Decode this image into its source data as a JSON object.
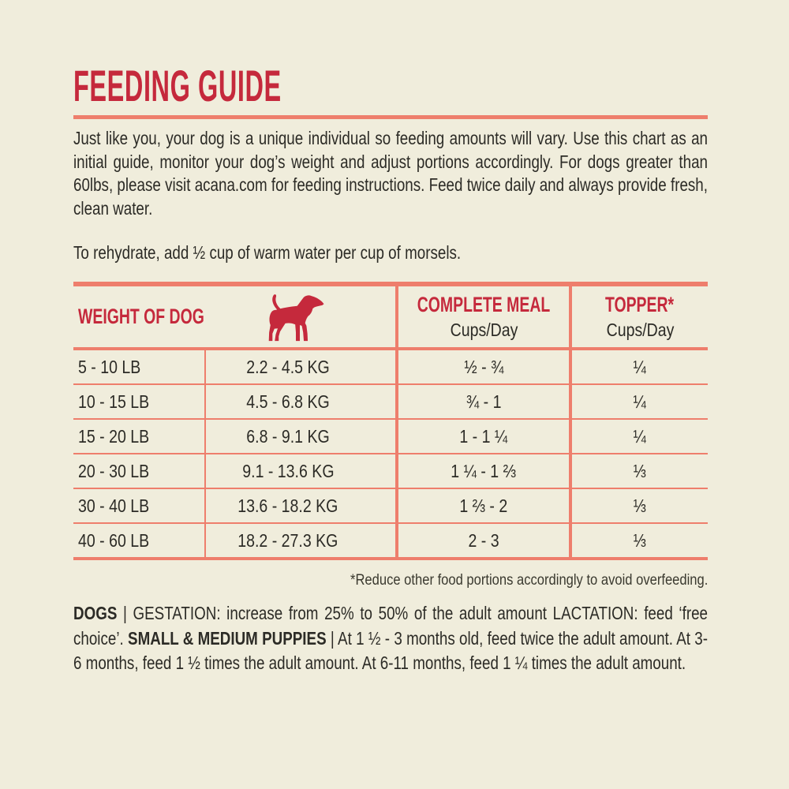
{
  "page": {
    "title": "FEEDING GUIDE",
    "intro": "Just like you, your dog is a unique individual so feeding amounts will vary. Use this chart as an initial guide, monitor your dog’s weight and adjust portions accordingly. For dogs greater than 60lbs, please visit acana.com for feeding instructions. Feed twice daily and always provide fresh, clean water.",
    "rehydrate_note": "To rehydrate, add ½ cup of warm water per cup of morsels.",
    "footnote": "*Reduce other food portions accordingly to avoid overfeeding.",
    "care_note_segments": [
      {
        "text": "DOGS",
        "bold": true
      },
      {
        "text": " | GESTATION: increase from 25% to 50% of the adult amount LACTATION: feed ‘free choice’. ",
        "bold": false
      },
      {
        "text": "SMALL & MEDIUM PUPPIES",
        "bold": true
      },
      {
        "text": " | At 1 ½ - 3 months old, feed twice the adult amount. At 3-6 months, feed 1 ½ times the adult amount. At 6-11 months, feed 1 ¼ times the adult amount.",
        "bold": false
      }
    ]
  },
  "table": {
    "headers": {
      "weight": "WEIGHT OF DOG",
      "meal": "COMPLETE MEAL",
      "meal_unit": "Cups/Day",
      "topper": "TOPPER*",
      "topper_unit": "Cups/Day"
    },
    "dog_icon": "dog-silhouette-icon",
    "rows": [
      {
        "lb": "5 - 10 LB",
        "kg": "2.2 - 4.5 KG",
        "meal": "½ - ¾",
        "topper": "¼"
      },
      {
        "lb": "10 - 15 LB",
        "kg": "4.5 - 6.8 KG",
        "meal": "¾ - 1",
        "topper": "¼"
      },
      {
        "lb": "15 - 20 LB",
        "kg": "6.8 - 9.1 KG",
        "meal": "1 - 1 ¼",
        "topper": "¼"
      },
      {
        "lb": "20 - 30 LB",
        "kg": "9.1 - 13.6 KG",
        "meal": "1 ¼ - 1 ⅔",
        "topper": "⅓"
      },
      {
        "lb": "30 - 40 LB",
        "kg": "13.6 - 18.2 KG",
        "meal": "1 ⅔ - 2",
        "topper": "⅓"
      },
      {
        "lb": "40 - 60 LB",
        "kg": "18.2 - 27.3 KG",
        "meal": "2 - 3",
        "topper": "⅓"
      }
    ]
  },
  "colors": {
    "background": "#F0EDDC",
    "accent_red": "#C5293C",
    "border_salmon": "#EE7E6C",
    "text": "#2C2B26"
  }
}
